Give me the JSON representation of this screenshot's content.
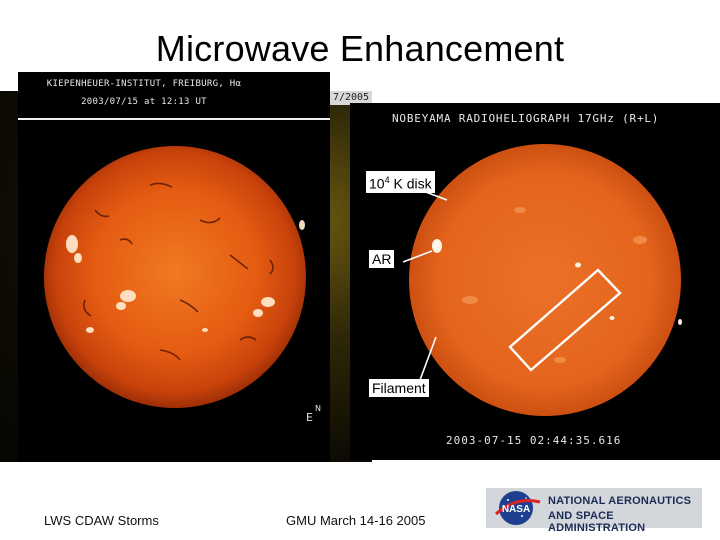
{
  "title": "Microwave Enhancement",
  "left_image": {
    "header_line1": "KIEPENHEUER-INSTITUT, FREIBURG, Hα",
    "header_line2": "2003/07/15 at 12:13 UT",
    "ghost_date": "7/2005",
    "orientation_north": "N",
    "orientation_east": "E"
  },
  "right_image": {
    "header": "NOBEYAMA RADIOHELIOGRAPH 17GHz (R+L)",
    "timestamp": "2003-07-15  02:44:35.616"
  },
  "annotations": {
    "disk_value": "10",
    "disk_exponent": "4",
    "disk_rest": " K disk",
    "ar": "AR",
    "filament": "Filament"
  },
  "footer": {
    "left": "LWS CDAW Storms",
    "middle": "GMU March 14-16 2005"
  },
  "logo": {
    "line1": "NATIONAL AERONAUTICS",
    "line2": "AND SPACE ADMINISTRATION"
  },
  "colors": {
    "halpha_sun": "#e2560f",
    "microwave_sun": "#e66a1f",
    "annotation_line": "#ffffff"
  }
}
